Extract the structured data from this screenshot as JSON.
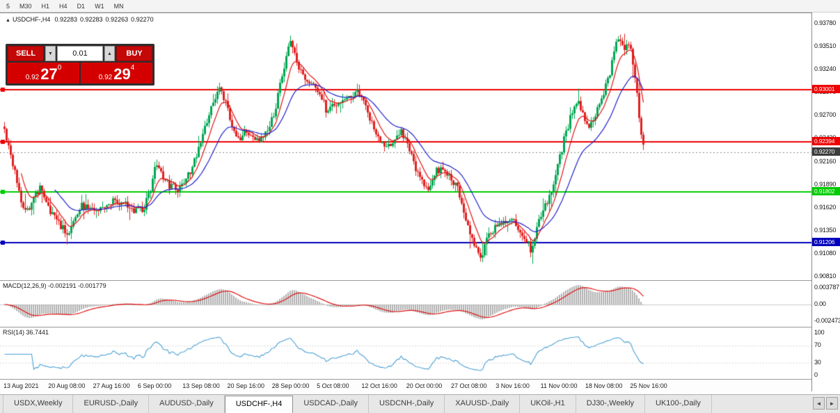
{
  "toolbar": {
    "timeframes": [
      "5",
      "M30",
      "H1",
      "H4",
      "D1",
      "W1",
      "MN"
    ]
  },
  "icons": {
    "chart_icon": "▲",
    "spinner_down": "▼",
    "spinner_up": "▲",
    "tab_scroll_left": "◄",
    "tab_scroll_right": "►"
  },
  "chart": {
    "title_symbol": "USDCHF-,H4",
    "ohlc": {
      "open": "0.92283",
      "high": "0.92283",
      "low": "0.92263",
      "close": "0.92270"
    },
    "price_axis_labels": [
      "0.93780",
      "0.93510",
      "0.93240",
      "0.92970",
      "0.92700",
      "0.92430",
      "0.92160",
      "0.91890",
      "0.91620",
      "0.91350",
      "0.91080",
      "0.90810"
    ],
    "levels": [
      {
        "price": "0.93001",
        "value": 0.93001,
        "color": "#ee0000"
      },
      {
        "price": "0.92394",
        "value": 0.92394,
        "color": "#ee0000"
      },
      {
        "price": "0.91802",
        "value": 0.91802,
        "color": "#00cc00"
      },
      {
        "price": "0.91206",
        "value": 0.91206,
        "color": "#0000bb"
      }
    ],
    "current_price": {
      "price": "0.92270",
      "value": 0.9227,
      "color": "#3c3c3c"
    }
  },
  "trade_panel": {
    "sell_label": "SELL",
    "buy_label": "BUY",
    "volume": "0.01",
    "bid": {
      "prefix": "0.92",
      "big": "27",
      "sup": "0"
    },
    "ask": {
      "prefix": "0.92",
      "big": "29",
      "sup": "4"
    }
  },
  "macd": {
    "label": "MACD(12,26,9) -0.002191 -0.001779",
    "axis_labels": [
      "0.003787",
      "0.00",
      "-0.002473"
    ]
  },
  "rsi": {
    "label": "RSI(14) 36.7441",
    "axis_labels": [
      "100",
      "70",
      "30",
      "0"
    ]
  },
  "time_axis": {
    "labels": [
      "13 Aug 2021",
      "20 Aug 08:00",
      "27 Aug 16:00",
      "6 Sep 00:00",
      "13 Sep 08:00",
      "20 Sep 16:00",
      "28 Sep 00:00",
      "5 Oct 08:00",
      "12 Oct 16:00",
      "20 Oct 00:00",
      "27 Oct 08:00",
      "3 Nov 16:00",
      "11 Nov 00:00",
      "18 Nov 08:00",
      "25 Nov 16:00"
    ]
  },
  "tabs": {
    "items": [
      "USDX,Weekly",
      "EURUSD-,Daily",
      "AUDUSD-,Daily",
      "USDCHF-,H4",
      "USDCAD-,Daily",
      "USDCNH-,Daily",
      "XAUUSD-,Daily",
      "UKOil-,H1",
      "DJ30-,Weekly",
      "UK100-,Daily"
    ],
    "active": "USDCHF-,H4"
  },
  "chart_data": {
    "type": "candlestick",
    "symbol": "USDCHF",
    "timeframe": "H4",
    "price_range": {
      "max": 0.9378,
      "min": 0.9081
    },
    "up_color": "#00a651",
    "down_color": "#e02020",
    "ma_fast_color": "#e01010",
    "ma_slow_color": "#2020cc",
    "indicators": {
      "macd": "12,26,9",
      "rsi": "14"
    },
    "price_path": [
      [
        6,
        0.9252
      ],
      [
        14,
        0.923
      ],
      [
        22,
        0.92
      ],
      [
        30,
        0.917
      ],
      [
        38,
        0.9158
      ],
      [
        48,
        0.9172
      ],
      [
        58,
        0.9185
      ],
      [
        68,
        0.9162
      ],
      [
        78,
        0.915
      ],
      [
        88,
        0.914
      ],
      [
        96,
        0.913
      ],
      [
        106,
        0.915
      ],
      [
        116,
        0.9166
      ],
      [
        130,
        0.916
      ],
      [
        145,
        0.9158
      ],
      [
        160,
        0.917
      ],
      [
        175,
        0.9168
      ],
      [
        190,
        0.916
      ],
      [
        205,
        0.9158
      ],
      [
        215,
        0.918
      ],
      [
        224,
        0.9218
      ],
      [
        232,
        0.92
      ],
      [
        242,
        0.9188
      ],
      [
        255,
        0.9183
      ],
      [
        268,
        0.9195
      ],
      [
        280,
        0.922
      ],
      [
        292,
        0.925
      ],
      [
        305,
        0.9282
      ],
      [
        316,
        0.9302
      ],
      [
        324,
        0.9285
      ],
      [
        333,
        0.9258
      ],
      [
        343,
        0.924
      ],
      [
        353,
        0.9252
      ],
      [
        363,
        0.9248
      ],
      [
        373,
        0.924
      ],
      [
        383,
        0.9255
      ],
      [
        393,
        0.927
      ],
      [
        403,
        0.931
      ],
      [
        412,
        0.9345
      ],
      [
        418,
        0.9358
      ],
      [
        426,
        0.9332
      ],
      [
        436,
        0.9315
      ],
      [
        448,
        0.9305
      ],
      [
        458,
        0.9298
      ],
      [
        468,
        0.9278
      ],
      [
        478,
        0.9283
      ],
      [
        490,
        0.9288
      ],
      [
        502,
        0.9292
      ],
      [
        512,
        0.93
      ],
      [
        522,
        0.9285
      ],
      [
        532,
        0.9262
      ],
      [
        544,
        0.9245
      ],
      [
        556,
        0.923
      ],
      [
        566,
        0.9242
      ],
      [
        576,
        0.9252
      ],
      [
        586,
        0.9232
      ],
      [
        596,
        0.921
      ],
      [
        606,
        0.9192
      ],
      [
        616,
        0.9185
      ],
      [
        626,
        0.9205
      ],
      [
        636,
        0.921
      ],
      [
        646,
        0.9198
      ],
      [
        656,
        0.9188
      ],
      [
        666,
        0.9152
      ],
      [
        676,
        0.9132
      ],
      [
        686,
        0.911
      ],
      [
        692,
        0.9102
      ],
      [
        700,
        0.9128
      ],
      [
        710,
        0.9138
      ],
      [
        722,
        0.9142
      ],
      [
        734,
        0.915
      ],
      [
        744,
        0.914
      ],
      [
        754,
        0.9128
      ],
      [
        762,
        0.9112
      ],
      [
        772,
        0.914
      ],
      [
        782,
        0.9162
      ],
      [
        792,
        0.918
      ],
      [
        802,
        0.9215
      ],
      [
        812,
        0.9248
      ],
      [
        822,
        0.9275
      ],
      [
        830,
        0.929
      ],
      [
        838,
        0.9268
      ],
      [
        846,
        0.9255
      ],
      [
        856,
        0.9272
      ],
      [
        866,
        0.9295
      ],
      [
        876,
        0.932
      ],
      [
        884,
        0.935
      ],
      [
        890,
        0.9365
      ],
      [
        896,
        0.9345
      ],
      [
        902,
        0.9355
      ],
      [
        908,
        0.934
      ],
      [
        914,
        0.93
      ],
      [
        919,
        0.9262
      ],
      [
        925,
        0.9228
      ]
    ]
  }
}
